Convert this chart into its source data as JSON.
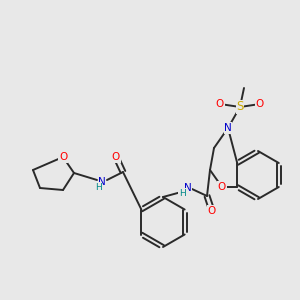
{
  "bg_color": "#e8e8e8",
  "bond_color": "#2a2a2a",
  "colors": {
    "O": "#ff0000",
    "N": "#0000cc",
    "S": "#ccaa00",
    "H": "#008888",
    "C": "#2a2a2a"
  },
  "figsize": [
    3.0,
    3.0
  ],
  "dpi": 100
}
